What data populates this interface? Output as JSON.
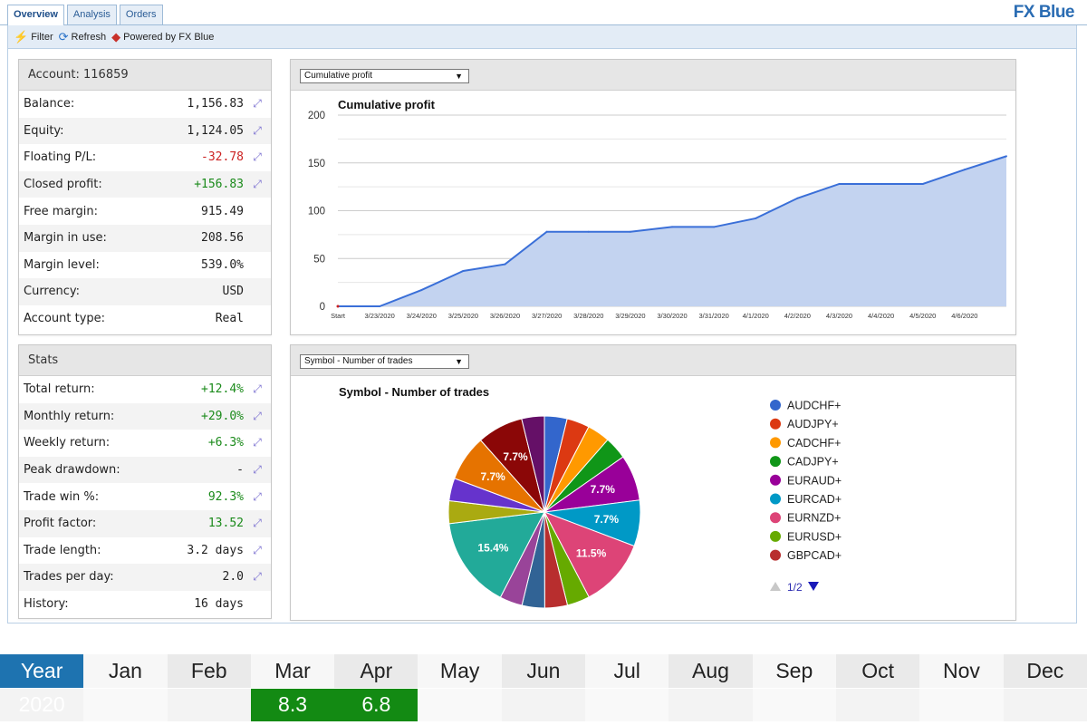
{
  "brand": "FX Blue",
  "tabs": [
    {
      "label": "Overview",
      "active": true
    },
    {
      "label": "Analysis",
      "active": false
    },
    {
      "label": "Orders",
      "active": false
    }
  ],
  "toolbar": {
    "filter_label": "Filter",
    "refresh_label": "Refresh",
    "powered_label": "Powered by FX Blue"
  },
  "account": {
    "title": "Account: 116859",
    "rows": [
      {
        "label": "Balance:",
        "value": "1,156.83",
        "tone": "",
        "icon": true
      },
      {
        "label": "Equity:",
        "value": "1,124.05",
        "tone": "",
        "icon": true
      },
      {
        "label": "Floating P/L:",
        "value": "-32.78",
        "tone": "neg",
        "icon": true
      },
      {
        "label": "Closed profit:",
        "value": "+156.83",
        "tone": "pos",
        "icon": true
      },
      {
        "label": "Free margin:",
        "value": "915.49",
        "tone": "",
        "icon": false
      },
      {
        "label": "Margin in use:",
        "value": "208.56",
        "tone": "",
        "icon": false
      },
      {
        "label": "Margin level:",
        "value": "539.0%",
        "tone": "",
        "icon": false
      },
      {
        "label": "Currency:",
        "value": "USD",
        "tone": "",
        "icon": false
      },
      {
        "label": "Account type:",
        "value": "Real",
        "tone": "",
        "icon": false
      }
    ]
  },
  "stats": {
    "title": "Stats",
    "rows": [
      {
        "label": "Total return:",
        "value": "+12.4%",
        "tone": "pos",
        "icon": true
      },
      {
        "label": "Monthly return:",
        "value": "+29.0%",
        "tone": "pos",
        "icon": true
      },
      {
        "label": "Weekly return:",
        "value": "+6.3%",
        "tone": "pos",
        "icon": true
      },
      {
        "label": "Peak drawdown:",
        "value": "-",
        "tone": "",
        "icon": true
      },
      {
        "label": "Trade win %:",
        "value": "92.3%",
        "tone": "pos",
        "icon": true
      },
      {
        "label": "Profit factor:",
        "value": "13.52",
        "tone": "pos",
        "icon": true
      },
      {
        "label": "Trade length:",
        "value": "3.2 days",
        "tone": "",
        "icon": true
      },
      {
        "label": "Trades per day:",
        "value": "2.0",
        "tone": "",
        "icon": true
      },
      {
        "label": "History:",
        "value": "16 days",
        "tone": "",
        "icon": false
      }
    ]
  },
  "profit_select": "Cumulative profit",
  "symbol_select": "Symbol - Number of trades",
  "icons": {
    "filter": "filter-icon",
    "refresh": "refresh-icon",
    "powered": "fxblue-logo-icon",
    "chart_link": "chart-link-icon"
  },
  "colors": {
    "accent": "#1e73b0",
    "positive": "#1a8a1a",
    "negative": "#cc2222",
    "area_fill": "#c3d3f0",
    "area_line": "#3a6fd8"
  },
  "chart_data": [
    {
      "type": "area",
      "title": "Cumulative profit",
      "xlabel": "",
      "ylabel": "",
      "categories": [
        "Start",
        "3/23/2020",
        "3/24/2020",
        "3/25/2020",
        "3/26/2020",
        "3/27/2020",
        "3/28/2020",
        "3/29/2020",
        "3/30/2020",
        "3/31/2020",
        "4/1/2020",
        "4/2/2020",
        "4/3/2020",
        "4/4/2020",
        "4/5/2020",
        "4/6/2020",
        ""
      ],
      "values": [
        0,
        0,
        17,
        37,
        44,
        78,
        78,
        78,
        83,
        83,
        92,
        113,
        128,
        128,
        128,
        143,
        157
      ],
      "ylim": [
        0,
        200
      ],
      "yticks": [
        0,
        50,
        100,
        150,
        200
      ],
      "grid": true
    },
    {
      "type": "pie",
      "title": "Symbol - Number of trades",
      "slices": [
        {
          "name": "AUDCHF+",
          "value": 3.8,
          "color": "#3366cc",
          "label": ""
        },
        {
          "name": "AUDJPY+",
          "value": 3.8,
          "color": "#dc3912",
          "label": ""
        },
        {
          "name": "CADCHF+",
          "value": 3.8,
          "color": "#ff9900",
          "label": ""
        },
        {
          "name": "CADJPY+",
          "value": 3.8,
          "color": "#109618",
          "label": ""
        },
        {
          "name": "EURAUD+",
          "value": 7.7,
          "color": "#990099",
          "label": "7.7%"
        },
        {
          "name": "EURCAD+",
          "value": 7.7,
          "color": "#0099c6",
          "label": "7.7%"
        },
        {
          "name": "EURNZD+",
          "value": 11.5,
          "color": "#dd4477",
          "label": "11.5%"
        },
        {
          "name": "EURUSD+",
          "value": 3.8,
          "color": "#66aa00",
          "label": ""
        },
        {
          "name": "GBPCAD+",
          "value": 3.8,
          "color": "#b82e2e",
          "label": ""
        },
        {
          "name": "",
          "value": 3.8,
          "color": "#316395",
          "label": ""
        },
        {
          "name": "",
          "value": 3.8,
          "color": "#994499",
          "label": ""
        },
        {
          "name": "",
          "value": 15.4,
          "color": "#22aa99",
          "label": "15.4%"
        },
        {
          "name": "",
          "value": 3.8,
          "color": "#aaaa11",
          "label": ""
        },
        {
          "name": "",
          "value": 3.8,
          "color": "#6633cc",
          "label": ""
        },
        {
          "name": "",
          "value": 7.7,
          "color": "#e67300",
          "label": "7.7%"
        },
        {
          "name": "",
          "value": 7.7,
          "color": "#8b0707",
          "label": "7.7%"
        },
        {
          "name": "",
          "value": 3.8,
          "color": "#651067",
          "label": ""
        }
      ],
      "legend": [
        "AUDCHF+",
        "AUDJPY+",
        "CADCHF+",
        "CADJPY+",
        "EURAUD+",
        "EURCAD+",
        "EURNZD+",
        "EURUSD+",
        "GBPCAD+"
      ],
      "legend_placement": "right",
      "legend_page": "1/2"
    }
  ],
  "monthly": {
    "year_header": "Year",
    "months": [
      "Jan",
      "Feb",
      "Mar",
      "Apr",
      "May",
      "Jun",
      "Jul",
      "Aug",
      "Sep",
      "Oct",
      "Nov",
      "Dec"
    ],
    "rows": [
      {
        "year": "2020",
        "values": [
          "",
          "",
          "8.3",
          "6.8",
          "",
          "",
          "",
          "",
          "",
          "",
          "",
          ""
        ]
      }
    ]
  }
}
